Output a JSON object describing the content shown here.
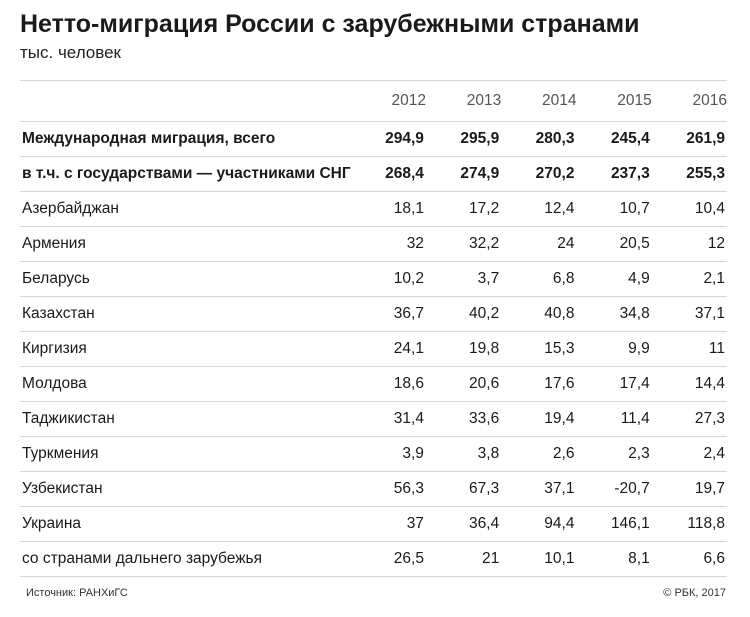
{
  "title": "Нетто-миграция России с зарубежными странами",
  "subtitle": "тыс. человек",
  "chart_data": {
    "type": "table",
    "columns": [
      "2012",
      "2013",
      "2014",
      "2015",
      "2016"
    ],
    "rows": [
      {
        "label": "Международная миграция, всего",
        "bold": true,
        "values": [
          "294,9",
          "295,9",
          "280,3",
          "245,4",
          "261,9"
        ]
      },
      {
        "label": "в т.ч. с государствами — участниками СНГ",
        "bold": true,
        "values": [
          "268,4",
          "274,9",
          "270,2",
          "237,3",
          "255,3"
        ]
      },
      {
        "label": "Азербайджан",
        "bold": false,
        "values": [
          "18,1",
          "17,2",
          "12,4",
          "10,7",
          "10,4"
        ]
      },
      {
        "label": "Армения",
        "bold": false,
        "values": [
          "32",
          "32,2",
          "24",
          "20,5",
          "12"
        ]
      },
      {
        "label": "Беларусь",
        "bold": false,
        "values": [
          "10,2",
          "3,7",
          "6,8",
          "4,9",
          "2,1"
        ]
      },
      {
        "label": "Казахстан",
        "bold": false,
        "values": [
          "36,7",
          "40,2",
          "40,8",
          "34,8",
          "37,1"
        ]
      },
      {
        "label": "Киргизия",
        "bold": false,
        "values": [
          "24,1",
          "19,8",
          "15,3",
          "9,9",
          "11"
        ]
      },
      {
        "label": "Молдова",
        "bold": false,
        "values": [
          "18,6",
          "20,6",
          "17,6",
          "17,4",
          "14,4"
        ]
      },
      {
        "label": "Таджикистан",
        "bold": false,
        "values": [
          "31,4",
          "33,6",
          "19,4",
          "11,4",
          "27,3"
        ]
      },
      {
        "label": "Туркмения",
        "bold": false,
        "values": [
          "3,9",
          "3,8",
          "2,6",
          "2,3",
          "2,4"
        ]
      },
      {
        "label": "Узбекистан",
        "bold": false,
        "values": [
          "56,3",
          "67,3",
          "37,1",
          "-20,7",
          "19,7"
        ]
      },
      {
        "label": "Украина",
        "bold": false,
        "values": [
          "37",
          "36,4",
          "94,4",
          "146,1",
          "118,8"
        ]
      },
      {
        "label": "со странами дальнего зарубежья",
        "bold": false,
        "values": [
          "26,5",
          "21",
          "10,1",
          "8,1",
          "6,6"
        ]
      }
    ]
  },
  "footer": {
    "source": "Источник: РАНХиГС",
    "copyright": "© РБК, 2017"
  }
}
